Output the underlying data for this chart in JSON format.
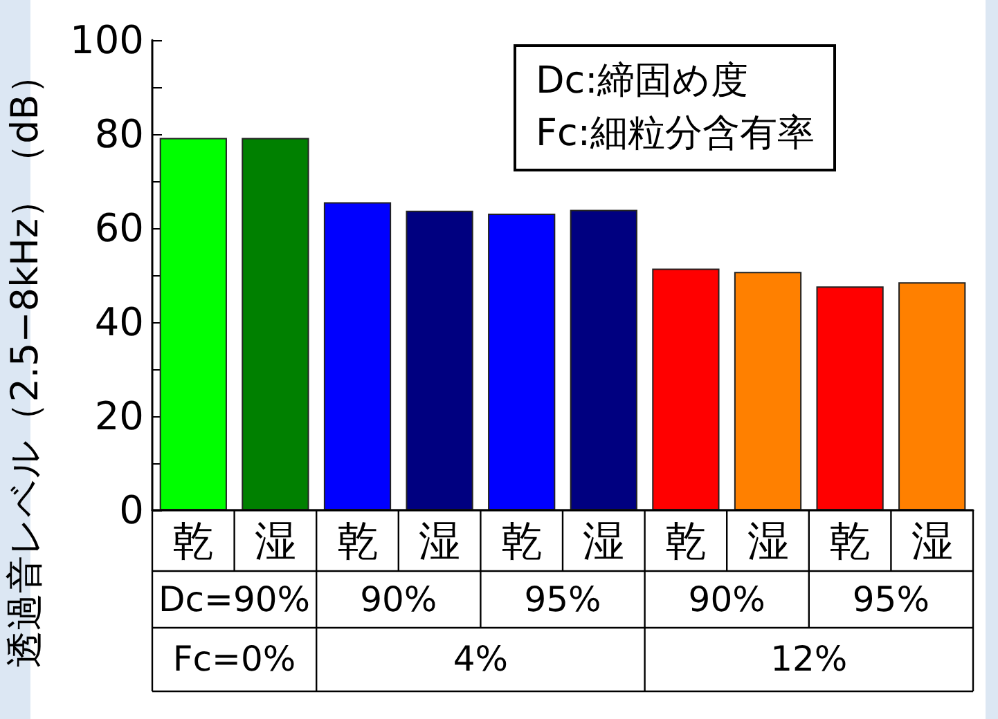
{
  "chart_data": {
    "type": "bar",
    "ylabel": "透過音レベル（2.5−8kHz）（dB）",
    "categories": [
      "乾",
      "湿",
      "乾",
      "湿",
      "乾",
      "湿",
      "乾",
      "湿",
      "乾",
      "湿"
    ],
    "values": [
      79.2,
      79.2,
      65.5,
      63.7,
      63.1,
      63.9,
      51.4,
      50.7,
      47.6,
      48.5
    ],
    "colors": [
      "#00ff00",
      "#008000",
      "#0000ff",
      "#000080",
      "#0000ff",
      "#000080",
      "#ff0000",
      "#ff8000",
      "#ff0000",
      "#ff8000"
    ],
    "ylim": [
      0,
      100
    ],
    "yticks": [
      0,
      {
        "value": 10,
        "label": null
      },
      20,
      {
        "value": 30,
        "label": null
      },
      40,
      {
        "value": 50,
        "label": null
      },
      60,
      {
        "value": 70,
        "label": null
      },
      80,
      {
        "value": 90,
        "label": null
      },
      100
    ],
    "grid": false,
    "annotations": [
      "Dc:締固め度",
      "Fc:細粒分含有率",
      "Dc=90%",
      "90%",
      "95%",
      "90%",
      "95%",
      "Fc=0%",
      "4%",
      "12%"
    ]
  }
}
